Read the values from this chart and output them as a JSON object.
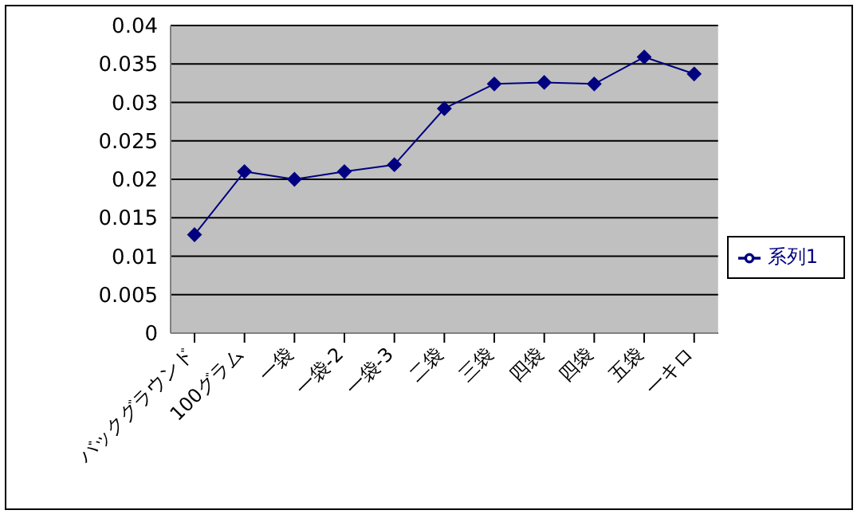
{
  "chart_data": {
    "type": "line",
    "categories": [
      "バックグラウンド",
      "100グラム",
      "一袋",
      "一袋-2",
      "一袋-3",
      "二袋",
      "三袋",
      "四袋",
      "四袋",
      "五袋",
      "一キロ"
    ],
    "series": [
      {
        "name": "系列1",
        "color": "#000080",
        "values": [
          0.0128,
          0.021,
          0.02,
          0.021,
          0.0219,
          0.0292,
          0.0324,
          0.0326,
          0.0324,
          0.0359,
          0.0337
        ]
      }
    ],
    "ylim": [
      0,
      0.04
    ],
    "yticks": [
      0,
      0.005,
      0.01,
      0.015,
      0.02,
      0.025,
      0.03,
      0.035,
      0.04
    ],
    "grid": "y",
    "legend": "right",
    "marker": "diamond",
    "line_style": "solid"
  }
}
